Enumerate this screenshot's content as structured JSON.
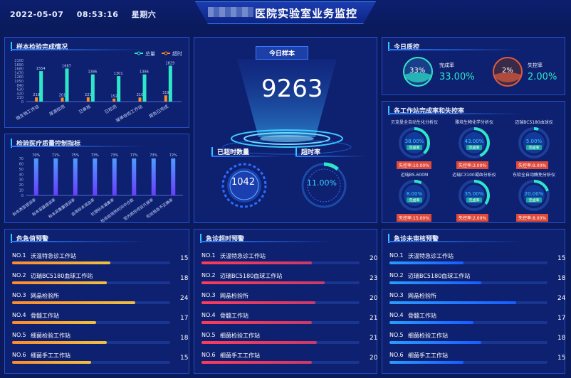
{
  "header": {
    "date": "2022-05-07",
    "time": "08:53:16",
    "weekday": "星期六",
    "title": "医院实验室业务监控"
  },
  "colors": {
    "teal": "#2ee6c8",
    "orange": "#ff8a2a",
    "blue": "#3b7bff",
    "yellow_grad": "#f0c040",
    "red_grad": "#e83a5a",
    "blue_grad": "#2a9cff"
  },
  "panels": {
    "completion": {
      "title": "样本检验完成情况"
    },
    "quality": {
      "title": "检验医疗质量控制指标"
    },
    "today_sample": {
      "title": "今日样本",
      "value": "9263"
    },
    "overtime": {
      "title": "已超时数量",
      "value": "1042"
    },
    "overtime_rate": {
      "title": "超时率",
      "value": "11.00%"
    },
    "today_qc": {
      "title": "今日质控",
      "complete_label": "完成率",
      "complete_pct": "33%",
      "complete_value": "33.00%",
      "lose_label": "失控率",
      "lose_pct": "2%",
      "lose_value": "2.00%"
    },
    "stations": {
      "title": "各工作站完成率和失控率"
    },
    "alert_critical": {
      "title": "危急值预警"
    },
    "alert_overtime": {
      "title": "急诊超时预警"
    },
    "alert_unreviewed": {
      "title": "急诊未审核预警"
    }
  },
  "chart_data": [
    {
      "type": "bar",
      "title": "样本检验完成情况",
      "categories": [
        "微生物工作站",
        "尿液检测",
        "已审核",
        "已检测",
        "接单收检工作站",
        "报告已完成"
      ],
      "y_ticks": [
        "0",
        "210",
        "420",
        "630",
        "840",
        "1050",
        "1260",
        "1470",
        "1680",
        "1890",
        "2100"
      ],
      "series": [
        {
          "name": "总量",
          "values": [
            1554,
            1687,
            1386,
            1301,
            1386,
            1829
          ]
        },
        {
          "name": "超时",
          "values": [
            218,
            201,
            221,
            152,
            210,
            319
          ]
        }
      ]
    },
    {
      "type": "bar",
      "title": "检验医疗质量控制指标",
      "categories": [
        "标本类型错误率",
        "标本容器错误率",
        "标本采集量错误率",
        "血液标本溶血率",
        "抗凝标本凝集率",
        "检验前周转时间中位数",
        "室内质控项目开展率",
        "检验报告不正确率"
      ],
      "y_ticks": [
        "0",
        "10",
        "20",
        "30",
        "40",
        "50",
        "60",
        "70"
      ],
      "values": [
        70,
        71,
        75,
        73,
        73,
        77,
        73,
        72
      ],
      "value_labels": [
        "70%",
        "71%",
        "75%",
        "73%",
        "73%",
        "77%",
        "73%",
        "72%"
      ]
    }
  ],
  "stations": [
    {
      "name": "贝克曼全自动生化分析仪",
      "rate": "38.00%",
      "rate_value": 38,
      "label": "完成率",
      "lose": "失控率:10.00%"
    },
    {
      "name": "雅培生物化学分析仪",
      "rate": "43.00%",
      "rate_value": 43,
      "label": "完成率",
      "lose": "失控率:3.00%"
    },
    {
      "name": "迈瑞BC5180血球仪",
      "rate": "5.00%",
      "rate_value": 5,
      "label": "完成率",
      "lose": "失控率:9.00%"
    },
    {
      "name": "迈瑞BS-600M",
      "rate": "8.00%",
      "rate_value": 8,
      "label": "完成率",
      "lose": "失控率:15.00%"
    },
    {
      "name": "迈瑞C3100凝血分析仪",
      "rate": "35.00%",
      "rate_value": 35,
      "label": "完成率",
      "lose": "失控率:2.00%"
    },
    {
      "name": "东软全自动酶免分析仪",
      "rate": "20.00%",
      "rate_value": 20,
      "label": "完成率",
      "lose": "失控率:8.00%"
    }
  ],
  "alerts": {
    "critical": [
      {
        "no": "NO.1",
        "name": "沃温特急诊工作站",
        "value": "15",
        "fill": 0.62
      },
      {
        "no": "NO.2",
        "name": "迈瑞BC5180血球工作站",
        "value": "18",
        "fill": 0.6
      },
      {
        "no": "NO.3",
        "name": "网晶检验所",
        "value": "24",
        "fill": 0.78
      },
      {
        "no": "NO.4",
        "name": "骨髓工作站",
        "value": "17",
        "fill": 0.53
      },
      {
        "no": "NO.5",
        "name": "细菌检验工作站",
        "value": "18",
        "fill": 0.6
      },
      {
        "no": "NO.6",
        "name": "细菌手工工作站",
        "value": "15",
        "fill": 0.5
      }
    ],
    "overtime": [
      {
        "no": "NO.1",
        "name": "沃温特急诊工作站",
        "value": "20",
        "fill": 0.7
      },
      {
        "no": "NO.2",
        "name": "迈瑞BC5180血球工作站",
        "value": "23",
        "fill": 0.78
      },
      {
        "no": "NO.3",
        "name": "网晶检验所",
        "value": "20",
        "fill": 0.72
      },
      {
        "no": "NO.4",
        "name": "骨髓工作站",
        "value": "21",
        "fill": 0.7
      },
      {
        "no": "NO.5",
        "name": "细菌检验工作站",
        "value": "21",
        "fill": 0.73
      },
      {
        "no": "NO.6",
        "name": "细菌手工工作站",
        "value": "20",
        "fill": 0.7
      }
    ],
    "unreviewed": [
      {
        "no": "NO.1",
        "name": "沃温特急诊工作站",
        "value": "15",
        "fill": 0.47
      },
      {
        "no": "NO.2",
        "name": "迈瑞BC5180血球工作站",
        "value": "18",
        "fill": 0.58
      },
      {
        "no": "NO.3",
        "name": "网晶检验所",
        "value": "24",
        "fill": 0.8
      },
      {
        "no": "NO.4",
        "name": "骨髓工作站",
        "value": "17",
        "fill": 0.53
      },
      {
        "no": "NO.5",
        "name": "细菌检验工作站",
        "value": "18",
        "fill": 0.58
      },
      {
        "no": "NO.6",
        "name": "细菌手工工作站",
        "value": "15",
        "fill": 0.47
      }
    ]
  }
}
